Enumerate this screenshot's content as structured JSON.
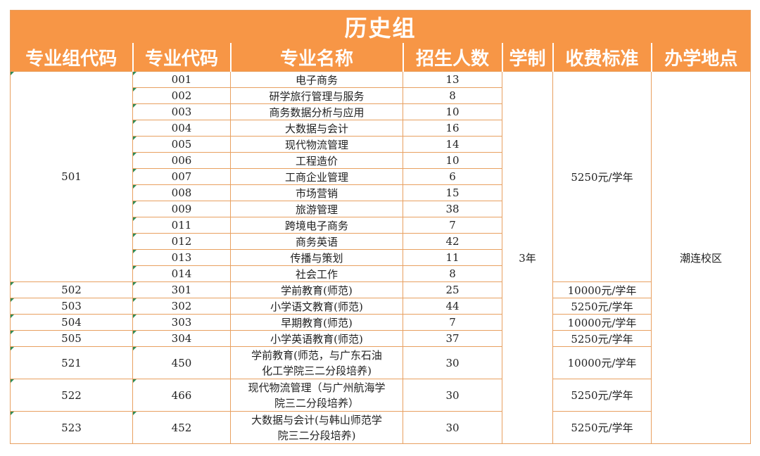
{
  "title": "历史组",
  "headers": [
    "专业组代码",
    "专业代码",
    "专业名称",
    "招生人数",
    "学制",
    "收费标准",
    "办学地点"
  ],
  "group_501": {
    "group_code": "501",
    "fee": "5250元/学年",
    "rows": [
      {
        "code": "001",
        "name": "电子商务",
        "count": "13"
      },
      {
        "code": "002",
        "name": "研学旅行管理与服务",
        "count": "8"
      },
      {
        "code": "003",
        "name": "商务数据分析与应用",
        "count": "10"
      },
      {
        "code": "004",
        "name": "大数据与会计",
        "count": "16"
      },
      {
        "code": "005",
        "name": "现代物流管理",
        "count": "14"
      },
      {
        "code": "006",
        "name": "工程造价",
        "count": "10"
      },
      {
        "code": "007",
        "name": "工商企业管理",
        "count": "6"
      },
      {
        "code": "008",
        "name": "市场营销",
        "count": "15"
      },
      {
        "code": "009",
        "name": "旅游管理",
        "count": "38"
      },
      {
        "code": "011",
        "name": "跨境电子商务",
        "count": "7"
      },
      {
        "code": "012",
        "name": "商务英语",
        "count": "42"
      },
      {
        "code": "013",
        "name": "传播与策划",
        "count": "11"
      },
      {
        "code": "014",
        "name": "社会工作",
        "count": "8"
      }
    ]
  },
  "duration": "3年",
  "location": "潮连校区",
  "other_rows": [
    {
      "group_code": "502",
      "code": "301",
      "name": "学前教育(师范)",
      "count": "25",
      "fee": "10000元/学年"
    },
    {
      "group_code": "503",
      "code": "302",
      "name": "小学语文教育(师范)",
      "count": "44",
      "fee": "5250元/学年"
    },
    {
      "group_code": "504",
      "code": "303",
      "name": "早期教育(师范)",
      "count": "7",
      "fee": "10000元/学年"
    },
    {
      "group_code": "505",
      "code": "304",
      "name": "小学英语教育(师范)",
      "count": "37",
      "fee": "5250元/学年"
    }
  ],
  "tall_rows": [
    {
      "group_code": "521",
      "code": "450",
      "name_line1": "学前教育(师范，与广东石油",
      "name_line2": "化工学院三二分段培养)",
      "count": "30",
      "fee": "10000元/学年"
    },
    {
      "group_code": "522",
      "code": "466",
      "name_line1": "现代物流管理（与广州航海学",
      "name_line2": "院三二分段培养）",
      "count": "30",
      "fee": "5250元/学年"
    },
    {
      "group_code": "523",
      "code": "452",
      "name_line1": "大数据与会计(与韩山师范学",
      "name_line2": "院三二分段培养)",
      "count": "30",
      "fee": "5250元/学年"
    }
  ]
}
